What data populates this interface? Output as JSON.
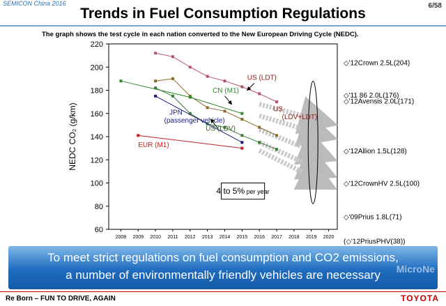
{
  "header": {
    "conference": "SEMICON China 2016",
    "page": "6/58",
    "title": "Trends in Fuel Consumption Regulations",
    "subtitle": "The graph shows the test cycle in each nation converted to the New European Driving Cycle (NEDC)."
  },
  "chart_data": {
    "type": "line",
    "ylabel": "NEDC CO₂ (g/km)",
    "xlim": [
      2007.3,
      2020.5
    ],
    "ylim": [
      60,
      220
    ],
    "yticks": [
      60,
      80,
      100,
      120,
      140,
      160,
      180,
      200,
      220
    ],
    "xticks": [
      2008,
      2009,
      2010,
      2011,
      2012,
      2013,
      2014,
      2015,
      2016,
      2017,
      2018,
      2019,
      2020
    ],
    "series": [
      {
        "name": "US (LDT)",
        "color": "#b5526e",
        "points": [
          [
            2010,
            212
          ],
          [
            2011,
            209
          ],
          [
            2012,
            200
          ],
          [
            2013,
            192
          ],
          [
            2014,
            188
          ],
          [
            2015,
            183
          ],
          [
            2016,
            177
          ],
          [
            2017,
            170
          ]
        ]
      },
      {
        "name": "US (LDV+LDT)",
        "color": "#8a6a2a",
        "points": [
          [
            2010,
            188
          ],
          [
            2011,
            190
          ],
          [
            2012,
            175
          ],
          [
            2013,
            165
          ],
          [
            2014,
            162
          ],
          [
            2015,
            155
          ],
          [
            2016,
            148
          ],
          [
            2017,
            141
          ]
        ]
      },
      {
        "name": "CN (M1)",
        "color": "#2e8b2e",
        "points": [
          [
            2008,
            188
          ],
          [
            2012,
            174
          ],
          [
            2015,
            160
          ]
        ]
      },
      {
        "name": "US (LDV)",
        "color": "#3a7a3a",
        "points": [
          [
            2010,
            182
          ],
          [
            2011,
            175
          ],
          [
            2012,
            160
          ],
          [
            2013,
            151
          ],
          [
            2014,
            148
          ],
          [
            2015,
            141
          ],
          [
            2016,
            135
          ],
          [
            2017,
            129
          ]
        ]
      },
      {
        "name": "JPN (passenger vehicle)",
        "color": "#1a1a80",
        "points": [
          [
            2010,
            175
          ],
          [
            2015,
            135
          ]
        ]
      },
      {
        "name": "EUR (M1)",
        "color": "#c42020",
        "points": [
          [
            2009,
            141
          ],
          [
            2015,
            130
          ]
        ]
      }
    ],
    "projections": [
      {
        "from": [
          2016,
          168
        ],
        "to": [
          2020,
          152
        ]
      },
      {
        "from": [
          2016,
          158
        ],
        "to": [
          2020,
          140
        ]
      },
      {
        "from": [
          2016,
          146
        ],
        "to": [
          2020,
          122
        ]
      },
      {
        "from": [
          2016,
          135
        ],
        "to": [
          2020,
          108
        ]
      },
      {
        "from": [
          2016,
          128
        ],
        "to": [
          2020,
          98
        ]
      }
    ],
    "annotations": [
      {
        "text": "US (LDT)",
        "x": 2015.3,
        "y": 189,
        "color": "#8b1a1a"
      },
      {
        "text": "CN (M1)",
        "x": 2013.3,
        "y": 178,
        "color": "#2e8b2e"
      },
      {
        "text": "US",
        "x": 2016.8,
        "y": 162,
        "color": "#8b1a1a"
      },
      {
        "text": "(LDV+LDT)",
        "x": 2017.3,
        "y": 155,
        "color": "#8b1a1a"
      },
      {
        "text": "JPN",
        "x": 2010.8,
        "y": 159,
        "color": "#1a1a80"
      },
      {
        "text": "(passenger vehicle)",
        "x": 2010.5,
        "y": 152,
        "color": "#1a1a80"
      },
      {
        "text": "US (LDV)",
        "x": 2012.9,
        "y": 145,
        "color": "#3a5a2a"
      },
      {
        "text": "EUR (M1)",
        "x": 2009.0,
        "y": 131,
        "color": "#c42020"
      }
    ],
    "rate_box": {
      "main": "4 to 5%",
      "suffix": " per year",
      "x0": 2013.8,
      "x1": 2016.3,
      "y0": 100,
      "y1": 86
    },
    "right_labels": [
      {
        "text": "◇'12Crown 2.5L(204)",
        "y": 204
      },
      {
        "text": "◇'11 86 2.0L(176)",
        "y": 176
      },
      {
        "text": "◇'12Avensis 2.0L(171)",
        "y": 171
      },
      {
        "text": "◇'12Allion 1.5L(128)",
        "y": 128
      },
      {
        "text": "◇'12CrownHV 2.5L(100)",
        "y": 100
      },
      {
        "text": "◇'09Prius 1.8L(71)",
        "y": 71
      },
      {
        "text": "(◇'12PriusPHV(38))",
        "y": 50
      }
    ]
  },
  "banner": {
    "line1": "To meet strict regulations on fuel consumption and CO2 emissions,",
    "line2": "a number of environmentally friendly vehicles are necessary"
  },
  "watermark": "MicroNe",
  "footer": {
    "left": "Re Born – FUN TO DRIVE, AGAIN",
    "right": "TOYOTA"
  }
}
